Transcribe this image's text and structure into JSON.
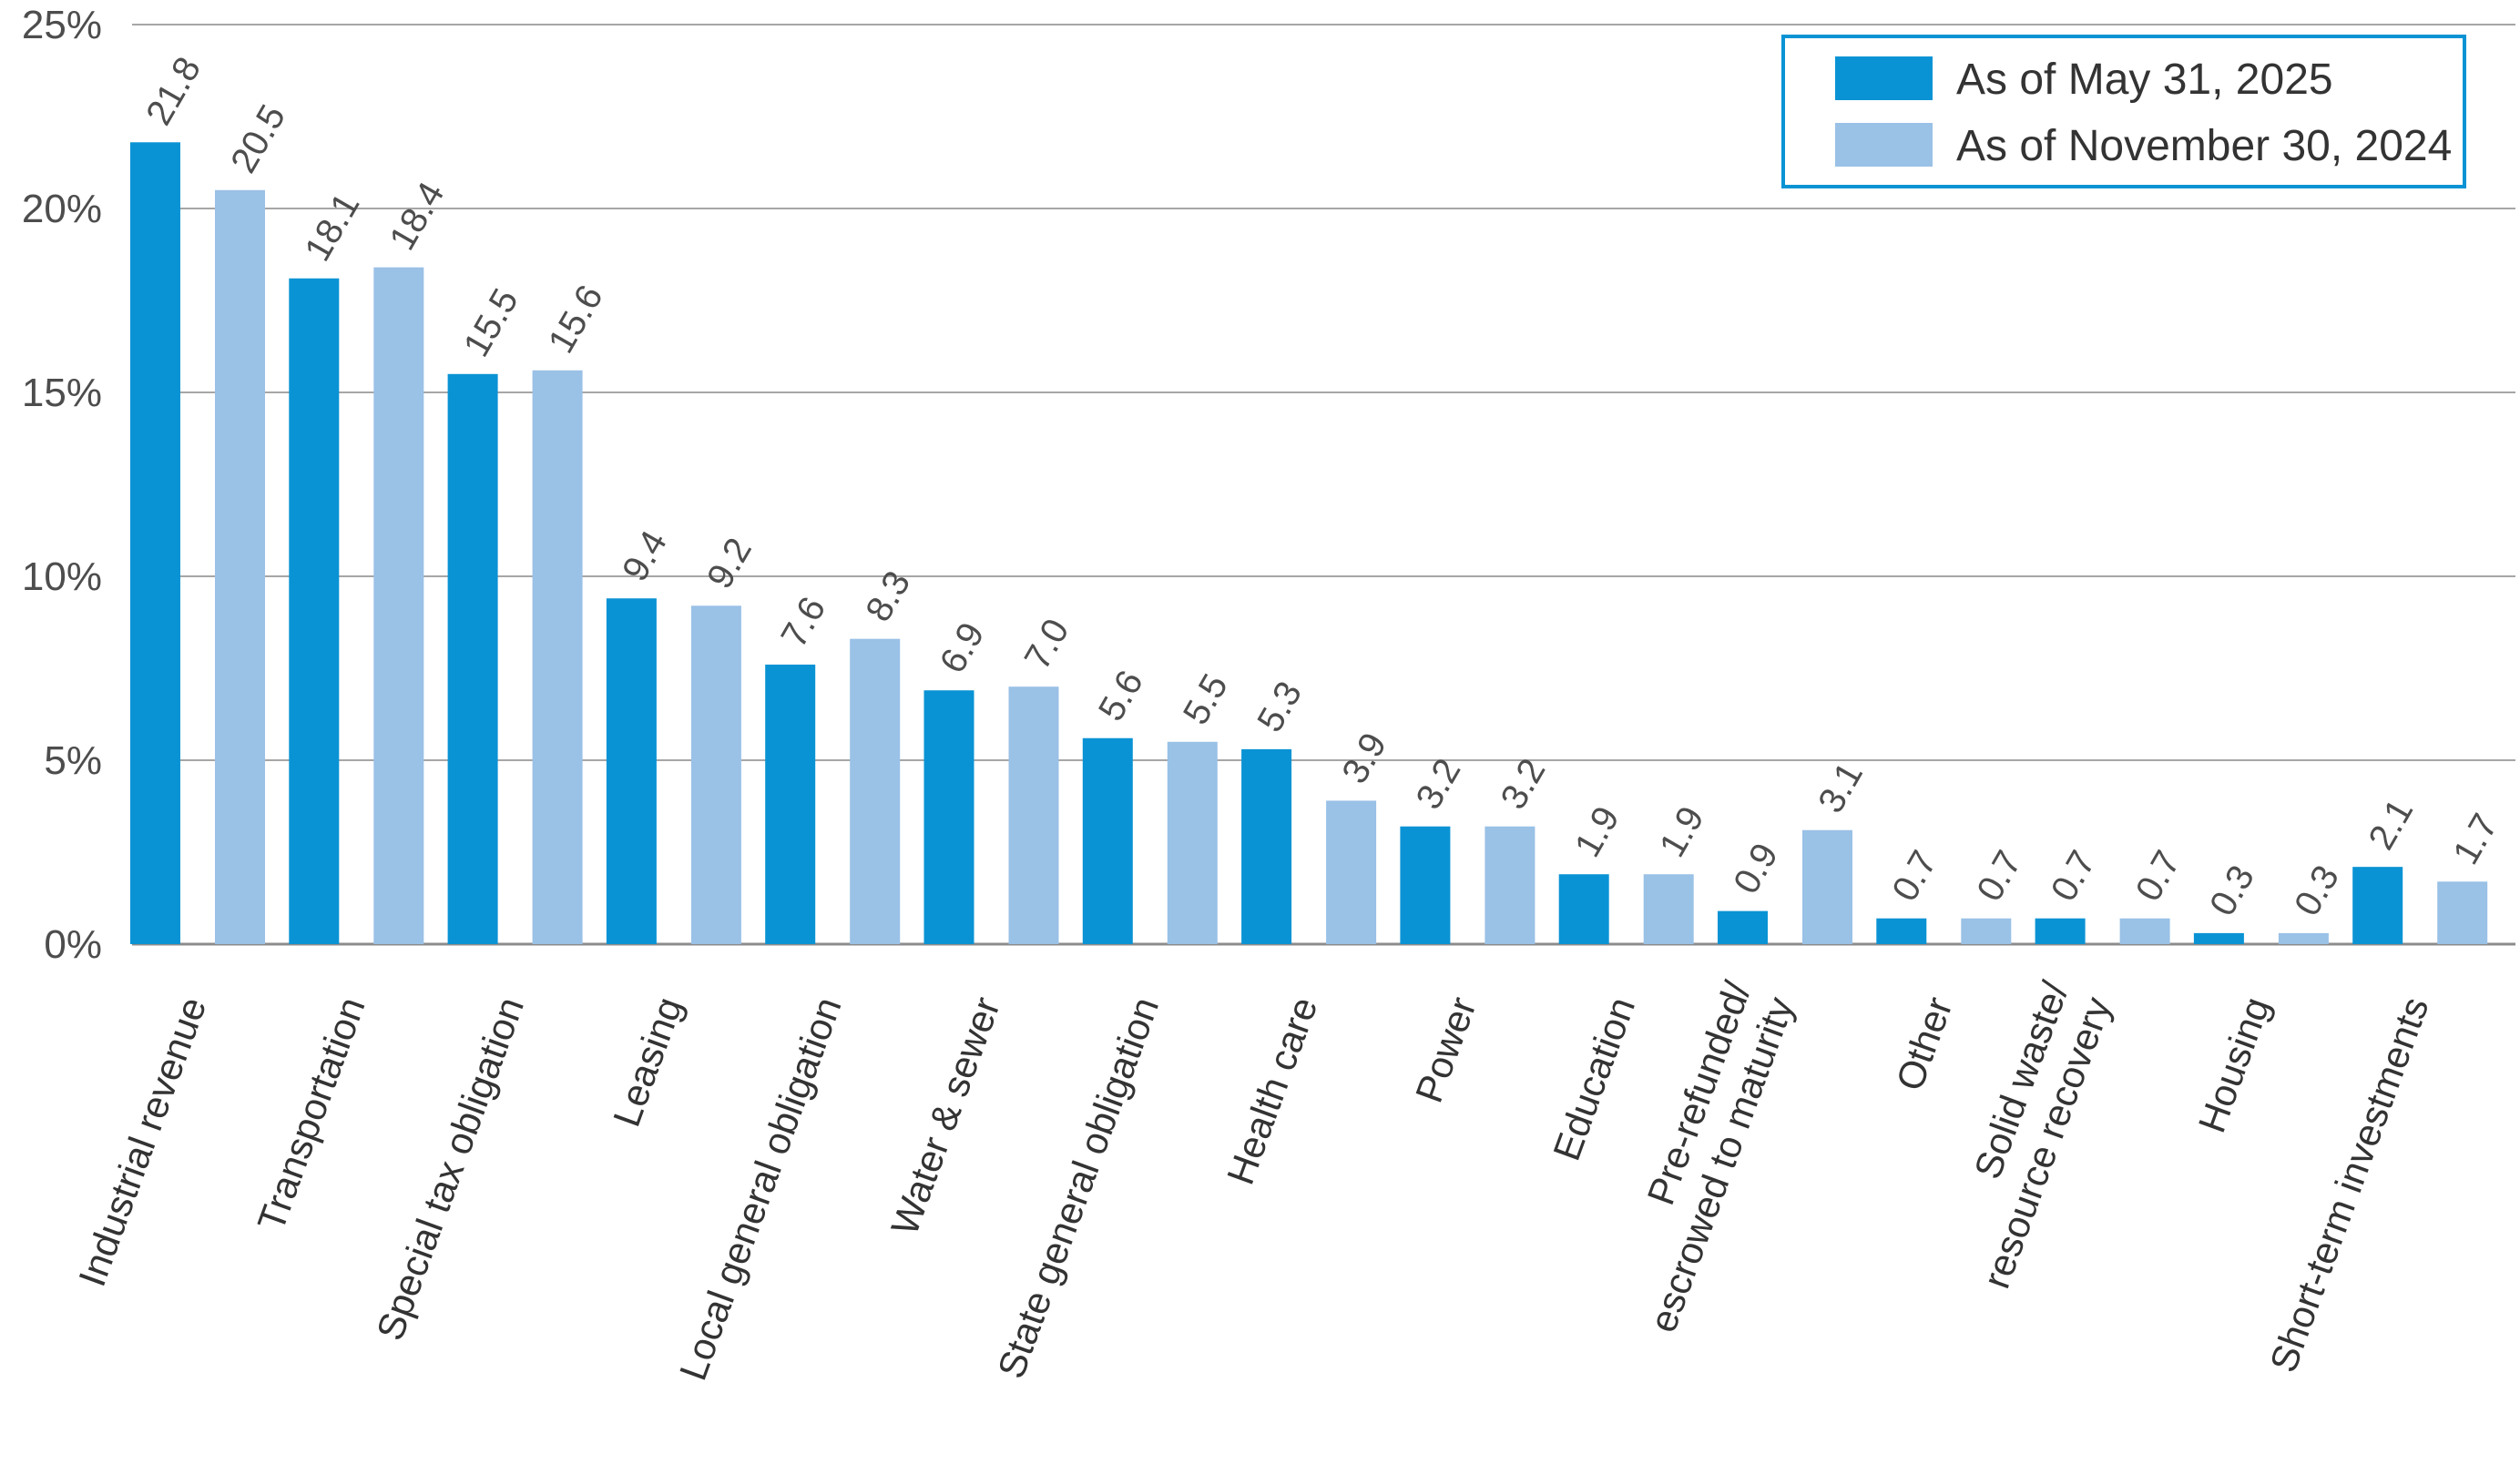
{
  "chart_data": {
    "type": "bar",
    "categories": [
      [
        "Industrial revenue"
      ],
      [
        "Transportation"
      ],
      [
        "Special tax obligation"
      ],
      [
        "Leasing"
      ],
      [
        "Local general obligation"
      ],
      [
        "Water & sewer"
      ],
      [
        "State general obligation"
      ],
      [
        "Health care"
      ],
      [
        "Power"
      ],
      [
        "Education"
      ],
      [
        "Pre-refunded/",
        "escrowed to maturity"
      ],
      [
        "Other"
      ],
      [
        "Solid waste/",
        "resource recovery"
      ],
      [
        "Housing"
      ],
      [
        "Short-term investments"
      ]
    ],
    "series": [
      {
        "name": "As of May 31, 2025",
        "color": "#0a93d4",
        "values": [
          21.8,
          18.1,
          15.5,
          9.4,
          7.6,
          6.9,
          5.6,
          5.3,
          3.2,
          1.9,
          0.9,
          0.7,
          0.7,
          0.3,
          2.1
        ]
      },
      {
        "name": "As of November 30, 2024",
        "color": "#9ac1e6",
        "values": [
          20.5,
          18.4,
          15.6,
          9.2,
          8.3,
          7.0,
          5.5,
          3.9,
          3.2,
          1.9,
          3.1,
          0.7,
          0.7,
          0.3,
          1.7
        ]
      }
    ],
    "yticks": [
      "0%",
      "5%",
      "10%",
      "15%",
      "20%",
      "25%"
    ],
    "ylim": [
      0,
      25
    ],
    "grid": true,
    "legend_position": "top-right",
    "legend_border_color": "#0a93d4"
  }
}
